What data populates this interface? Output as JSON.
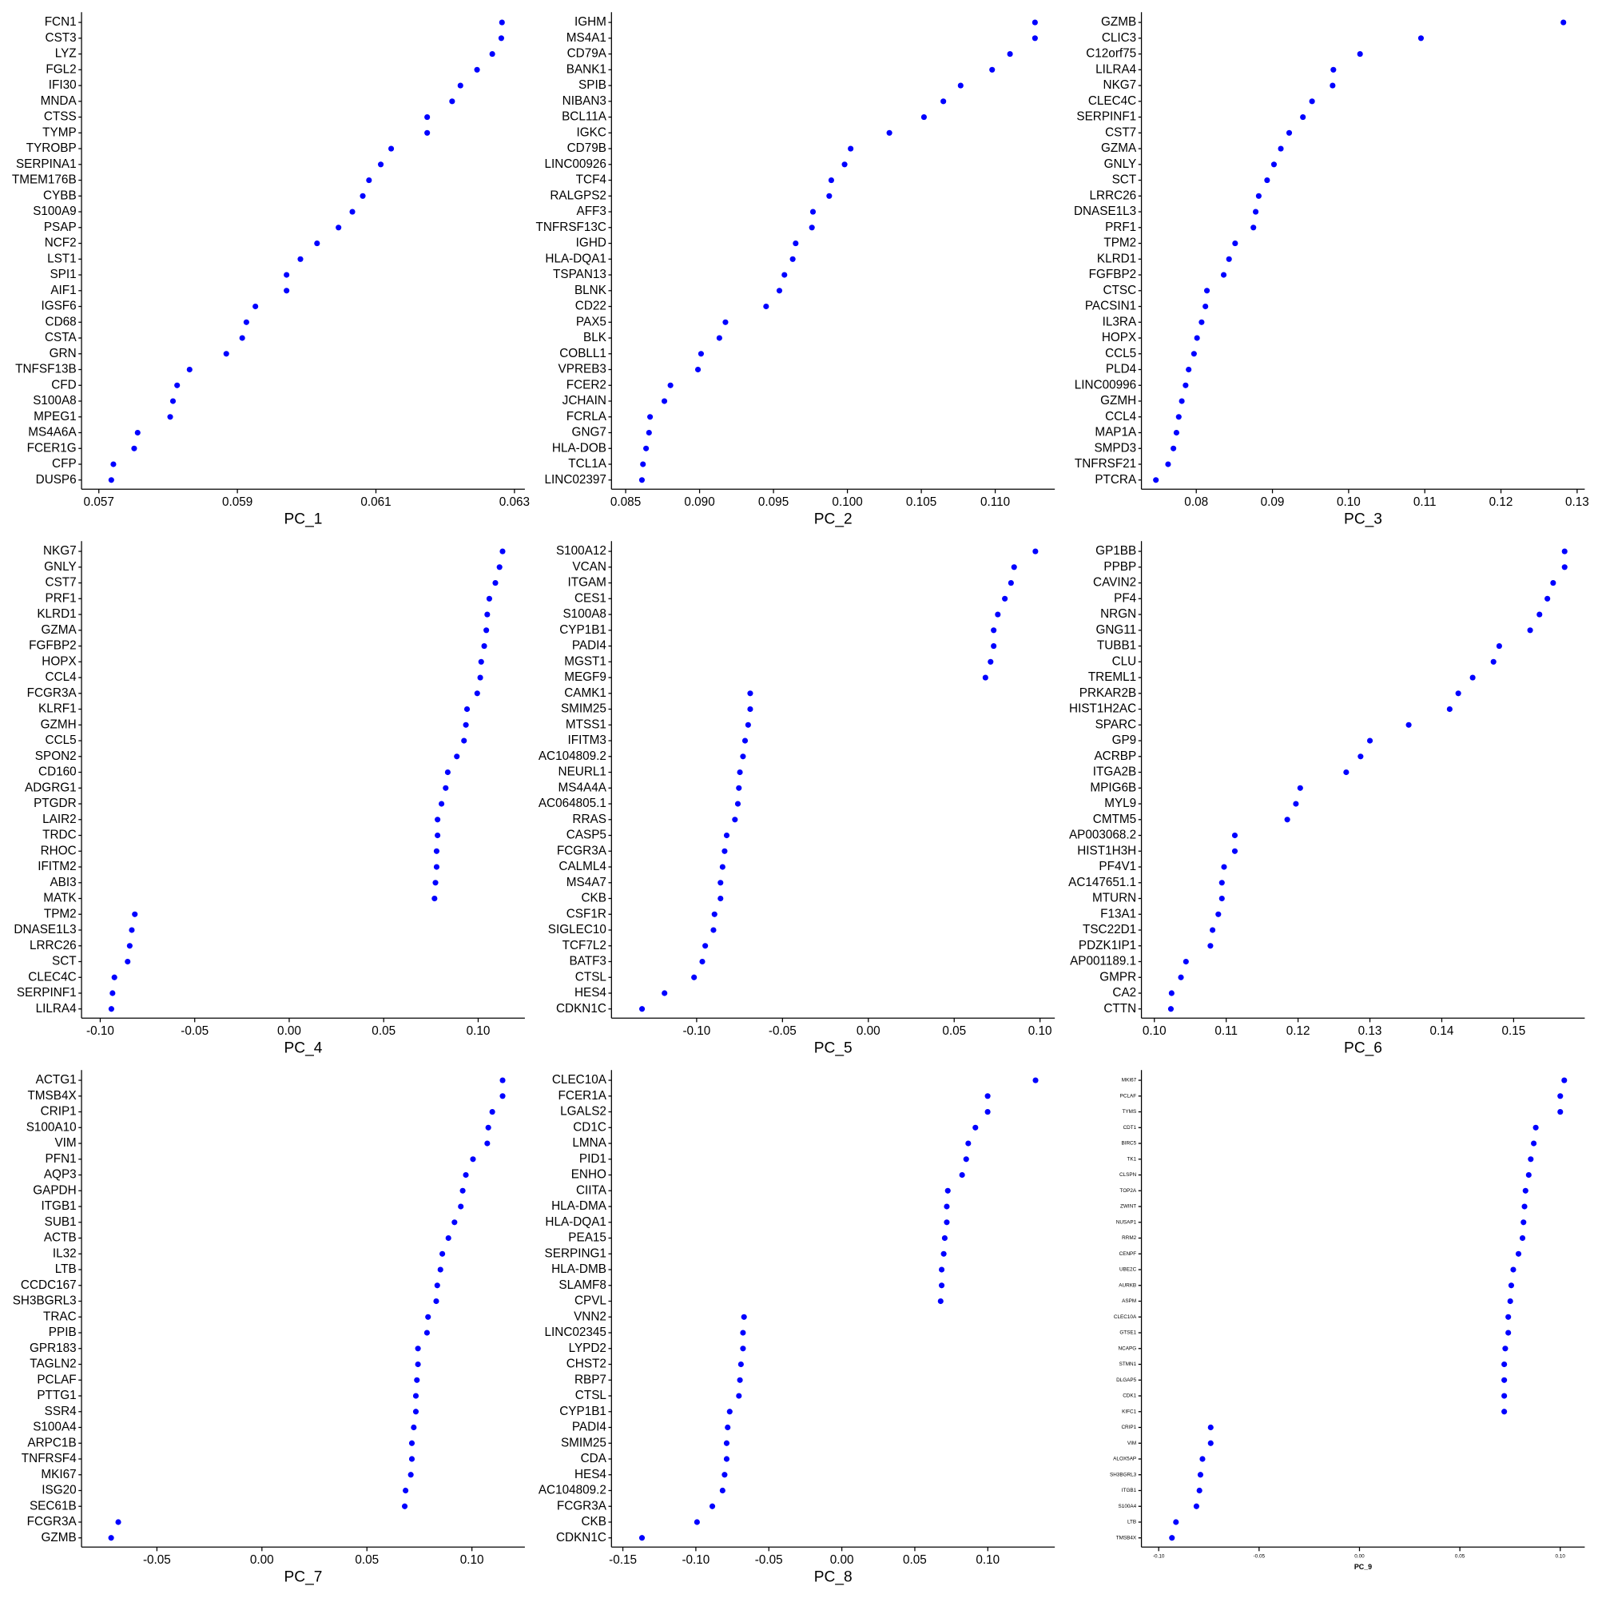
{
  "chart_data": [
    {
      "type": "dot",
      "xlabel": "PC_1",
      "color": "#0000ff",
      "categories": [
        "FCN1",
        "CST3",
        "LYZ",
        "FGL2",
        "IFI30",
        "MNDA",
        "CTSS",
        "TYMP",
        "TYROBP",
        "SERPINA1",
        "TMEM176B",
        "CYBB",
        "S100A9",
        "PSAP",
        "NCF2",
        "LST1",
        "SPI1",
        "AIF1",
        "IGSF6",
        "CD68",
        "CSTA",
        "GRN",
        "TNFSF13B",
        "CFD",
        "S100A8",
        "MPEG1",
        "MS4A6A",
        "FCER1G",
        "CFP",
        "DUSP6"
      ],
      "values": [
        0.06282,
        0.06281,
        0.06268,
        0.06246,
        0.06222,
        0.0621,
        0.06174,
        0.06174,
        0.06122,
        0.06107,
        0.0609,
        0.06081,
        0.06066,
        0.06046,
        0.06015,
        0.05991,
        0.05971,
        0.05971,
        0.05926,
        0.05913,
        0.05907,
        0.05884,
        0.05831,
        0.05813,
        0.05807,
        0.05803,
        0.05756,
        0.05751,
        0.05721,
        0.05718
      ],
      "xlim": [
        0.05675,
        0.06315
      ],
      "xticks": [
        0.057,
        0.059,
        0.061,
        0.063
      ]
    },
    {
      "type": "dot",
      "xlabel": "PC_2",
      "color": "#0000ff",
      "categories": [
        "IGHM",
        "MS4A1",
        "CD79A",
        "BANK1",
        "SPIB",
        "NIBAN3",
        "BCL11A",
        "IGKC",
        "CD79B",
        "LINC00926",
        "TCF4",
        "RALGPS2",
        "AFF3",
        "TNFRSF13C",
        "IGHD",
        "HLA-DQA1",
        "TSPAN13",
        "BLNK",
        "CD22",
        "PAX5",
        "BLK",
        "COBLL1",
        "VPREB3",
        "FCER2",
        "JCHAIN",
        "FCRLA",
        "GNG7",
        "HLA-DOB",
        "TCL1A",
        "LINC02397"
      ],
      "values": [
        0.11269,
        0.11269,
        0.111,
        0.10979,
        0.10766,
        0.10649,
        0.10518,
        0.10284,
        0.10022,
        0.09981,
        0.09891,
        0.09877,
        0.09767,
        0.0976,
        0.0965,
        0.0963,
        0.09574,
        0.0954,
        0.0945,
        0.09175,
        0.09134,
        0.0901,
        0.08989,
        0.08803,
        0.08762,
        0.08665,
        0.08658,
        0.08638,
        0.08617,
        0.0861
      ],
      "xlim": [
        0.08404,
        0.11403
      ],
      "xticks": [
        0.085,
        {
          "value": 0.09,
          "label": "0.090"
        },
        0.095,
        {
          "value": 0.1,
          "label": "0.100"
        },
        0.105,
        {
          "value": 0.11,
          "label": "0.110"
        }
      ]
    },
    {
      "type": "dot",
      "xlabel": "PC_3",
      "color": "#0000ff",
      "categories": [
        "GZMB",
        "CLIC3",
        "C12orf75",
        "LILRA4",
        "NKG7",
        "CLEC4C",
        "SERPINF1",
        "CST7",
        "GZMA",
        "GNLY",
        "SCT",
        "LRRC26",
        "DNASE1L3",
        "PRF1",
        "TPM2",
        "KLRD1",
        "FGFBP2",
        "CTSC",
        "PACSIN1",
        "IL3RA",
        "HOPX",
        "CCL5",
        "PLD4",
        "LINC00996",
        "GZMH",
        "CCL4",
        "MAP1A",
        "SMPD3",
        "TNFRSF21",
        "PTCRA"
      ],
      "values": [
        0.1282,
        0.1095,
        0.1015,
        0.098,
        0.0979,
        0.0952,
        0.094,
        0.0922,
        0.0911,
        0.0902,
        0.0893,
        0.0882,
        0.0878,
        0.0875,
        0.0851,
        0.0843,
        0.0836,
        0.0814,
        0.0812,
        0.0807,
        0.0801,
        0.0797,
        0.079,
        0.0786,
        0.0781,
        0.0777,
        0.0774,
        0.077,
        0.0763,
        0.0747
      ],
      "xlim": [
        0.0728,
        0.131
      ],
      "xticks": [
        0.08,
        0.09,
        {
          "value": 0.1,
          "label": "0.10"
        },
        0.11,
        0.12,
        0.13
      ]
    },
    {
      "type": "dot",
      "xlabel": "PC_4",
      "color": "#0000ff",
      "categories": [
        "NKG7",
        "GNLY",
        "CST7",
        "PRF1",
        "KLRD1",
        "GZMA",
        "FGFBP2",
        "HOPX",
        "CCL4",
        "FCGR3A",
        "KLRF1",
        "GZMH",
        "CCL5",
        "SPON2",
        "CD160",
        "ADGRG1",
        "PTGDR",
        "LAIR2",
        "TRDC",
        "RHOC",
        "IFITM2",
        "ABI3",
        "MATK",
        "TPM2",
        "DNASE1L3",
        "LRRC26",
        "SCT",
        "CLEC4C",
        "SERPINF1",
        "LILRA4"
      ],
      "values": [
        0.1129,
        0.1113,
        0.1091,
        0.1059,
        0.1048,
        0.1043,
        0.1032,
        0.1016,
        0.1011,
        0.0995,
        0.0941,
        0.0935,
        0.0925,
        0.0887,
        0.0839,
        0.0828,
        0.0806,
        0.0785,
        0.0785,
        0.078,
        0.078,
        0.0774,
        0.0769,
        -0.0817,
        -0.0833,
        -0.0844,
        -0.0855,
        -0.0925,
        -0.0935,
        -0.0941
      ],
      "xlim": [
        -0.1099,
        0.1247
      ],
      "xticks": [
        {
          "value": -0.1,
          "label": "-0.10"
        },
        -0.05,
        {
          "value": 0,
          "label": "0.00"
        },
        0.05,
        {
          "value": 0.1,
          "label": "0.10"
        }
      ]
    },
    {
      "type": "dot",
      "xlabel": "PC_5",
      "color": "#0000ff",
      "categories": [
        "S100A12",
        "VCAN",
        "ITGAM",
        "CES1",
        "S100A8",
        "CYP1B1",
        "PADI4",
        "MGST1",
        "MEGF9",
        "CAMK1",
        "SMIM25",
        "MTSS1",
        "IFITM3",
        "AC104809.2",
        "NEURL1",
        "MS4A4A",
        "AC064805.1",
        "RRAS",
        "CASP5",
        "FCGR3A",
        "CALML4",
        "MS4A7",
        "CKB",
        "CSF1R",
        "SIGLEC10",
        "TCF7L2",
        "BATF3",
        "CTSL",
        "HES4",
        "CDKN1C"
      ],
      "values": [
        0.0973,
        0.0849,
        0.0831,
        0.0795,
        0.0754,
        0.073,
        0.073,
        0.0712,
        0.0682,
        -0.0688,
        -0.0688,
        -0.07,
        -0.0718,
        -0.073,
        -0.0748,
        -0.0754,
        -0.076,
        -0.0777,
        -0.0825,
        -0.0837,
        -0.0849,
        -0.0861,
        -0.0861,
        -0.0896,
        -0.0902,
        -0.095,
        -0.0967,
        -0.1015,
        -0.1187,
        -0.1318
      ],
      "xlim": [
        -0.1496,
        0.1086
      ],
      "xticks": [
        {
          "value": -0.1,
          "label": "-0.10"
        },
        -0.05,
        {
          "value": 0,
          "label": "0.00"
        },
        0.05,
        {
          "value": 0.1,
          "label": "0.10"
        }
      ]
    },
    {
      "type": "dot",
      "xlabel": "PC_6",
      "color": "#0000ff",
      "categories": [
        "GP1BB",
        "PPBP",
        "CAVIN2",
        "PF4",
        "NRGN",
        "GNG11",
        "TUBB1",
        "CLU",
        "TREML1",
        "PRKAR2B",
        "HIST1H2AC",
        "SPARC",
        "GP9",
        "ACRBP",
        "ITGA2B",
        "MPIG6B",
        "MYL9",
        "CMTM5",
        "AP003068.2",
        "HIST1H3H",
        "PF4V1",
        "AC147651.1",
        "MTURN",
        "F13A1",
        "TSC22D1",
        "PDZK1IP1",
        "AP001189.1",
        "GMPR",
        "CA2",
        "CTTN"
      ],
      "values": [
        0.1571,
        0.1571,
        0.1555,
        0.1547,
        0.1536,
        0.1523,
        0.148,
        0.1472,
        0.1443,
        0.1423,
        0.1411,
        0.1354,
        0.13,
        0.1287,
        0.1267,
        0.1203,
        0.1197,
        0.1185,
        0.1112,
        0.1112,
        0.1097,
        0.1094,
        0.1094,
        0.1089,
        0.1081,
        0.1078,
        0.1044,
        0.1037,
        0.1024,
        0.1023
      ],
      "xlim": [
        0.0982,
        0.1599
      ],
      "xticks": [
        {
          "value": 0.1,
          "label": "0.10"
        },
        0.11,
        0.12,
        0.13,
        0.14,
        0.15
      ]
    },
    {
      "type": "dot",
      "xlabel": "PC_7",
      "color": "#0000ff",
      "categories": [
        "ACTG1",
        "TMSB4X",
        "CRIP1",
        "S100A10",
        "VIM",
        "PFN1",
        "AQP3",
        "GAPDH",
        "ITGB1",
        "SUB1",
        "ACTB",
        "IL32",
        "LTB",
        "CCDC167",
        "SH3BGRL3",
        "TRAC",
        "PPIB",
        "GPR183",
        "TAGLN2",
        "PCLAF",
        "PTTG1",
        "SSR4",
        "S100A4",
        "ARPC1B",
        "TNFRSF4",
        "MKI67",
        "ISG20",
        "SEC61B",
        "FCGR3A",
        "GZMB"
      ],
      "values": [
        0.1146,
        0.1146,
        0.1097,
        0.1078,
        0.1073,
        0.1005,
        0.0971,
        0.0956,
        0.0947,
        0.0917,
        0.0888,
        0.0859,
        0.085,
        0.0835,
        0.083,
        0.0791,
        0.0786,
        0.0743,
        0.0743,
        0.0738,
        0.0733,
        0.0733,
        0.0723,
        0.0714,
        0.0714,
        0.0709,
        0.0684,
        0.068,
        -0.0684,
        -0.0718
      ],
      "xlim": [
        -0.0859,
        0.1252
      ],
      "xticks": [
        -0.05,
        {
          "value": 0,
          "label": "0.00"
        },
        0.05,
        {
          "value": 0.1,
          "label": "0.10"
        }
      ]
    },
    {
      "type": "dot",
      "xlabel": "PC_8",
      "color": "#0000ff",
      "categories": [
        "CLEC10A",
        "FCER1A",
        "LGALS2",
        "CD1C",
        "LMNA",
        "PID1",
        "ENHO",
        "CIITA",
        "HLA-DMA",
        "HLA-DQA1",
        "PEA15",
        "SERPING1",
        "HLA-DMB",
        "SLAMF8",
        "CPVL",
        "VNN2",
        "LINC02345",
        "LYPD2",
        "CHST2",
        "RBP7",
        "CTSL",
        "CYP1B1",
        "PADI4",
        "SMIM25",
        "CDA",
        "HES4",
        "AC104809.2",
        "FCGR3A",
        "CKB",
        "CDKN1C"
      ],
      "values": [
        0.1327,
        0.0999,
        0.0999,
        0.0915,
        0.0866,
        0.0852,
        0.0824,
        0.0726,
        0.0719,
        0.0719,
        0.0705,
        0.0698,
        0.0684,
        0.0684,
        0.0677,
        -0.067,
        -0.0677,
        -0.0677,
        -0.0691,
        -0.0698,
        -0.0705,
        -0.0768,
        -0.0782,
        -0.0789,
        -0.0789,
        -0.0803,
        -0.0817,
        -0.0887,
        -0.0992,
        -0.1369
      ],
      "xlim": [
        -0.1578,
        0.1459
      ],
      "xticks": [
        -0.15,
        {
          "value": -0.1,
          "label": "-0.10"
        },
        -0.05,
        {
          "value": 0,
          "label": "0.00"
        },
        0.05,
        {
          "value": 0.1,
          "label": "0.10"
        }
      ]
    },
    {
      "type": "dot",
      "xlabel": "PC_9",
      "color": "#0000ff",
      "categories": [
        "MKI67",
        "PCLAF",
        "TYMS",
        "CDT1",
        "BIRC5",
        "TK1",
        "CLSPN",
        "TOP2A",
        "ZWINT",
        "NUSAP1",
        "RRM2",
        "CENPF",
        "UBE2C",
        "AURKB",
        "ASPM",
        "CLEC10A",
        "GTSE1",
        "NCAPG",
        "STMN1",
        "DLGAP5",
        "CDK1",
        "KIFC1",
        "CRIP1",
        "VIM",
        "ALOX5AP",
        "SH3BGRL3",
        "ITGB1",
        "S100A4",
        "LTB",
        "TMSB4X"
      ],
      "values": [
        0.102,
        0.1,
        0.1,
        0.0878,
        0.0868,
        0.0853,
        0.0843,
        0.0827,
        0.0822,
        0.0817,
        0.0812,
        0.0792,
        0.0766,
        0.0756,
        0.0751,
        0.0741,
        0.0741,
        0.0726,
        0.0721,
        0.0721,
        0.0721,
        0.0721,
        -0.0741,
        -0.0741,
        -0.0782,
        -0.0792,
        -0.0797,
        -0.0812,
        -0.0914,
        -0.0934
      ],
      "xlim": [
        -0.1086,
        0.1122
      ],
      "xticks": [
        {
          "value": -0.1,
          "label": "-0.10"
        },
        -0.05,
        {
          "value": 0,
          "label": "0.00"
        },
        0.05,
        {
          "value": 0.1,
          "label": "0.10"
        }
      ]
    }
  ]
}
